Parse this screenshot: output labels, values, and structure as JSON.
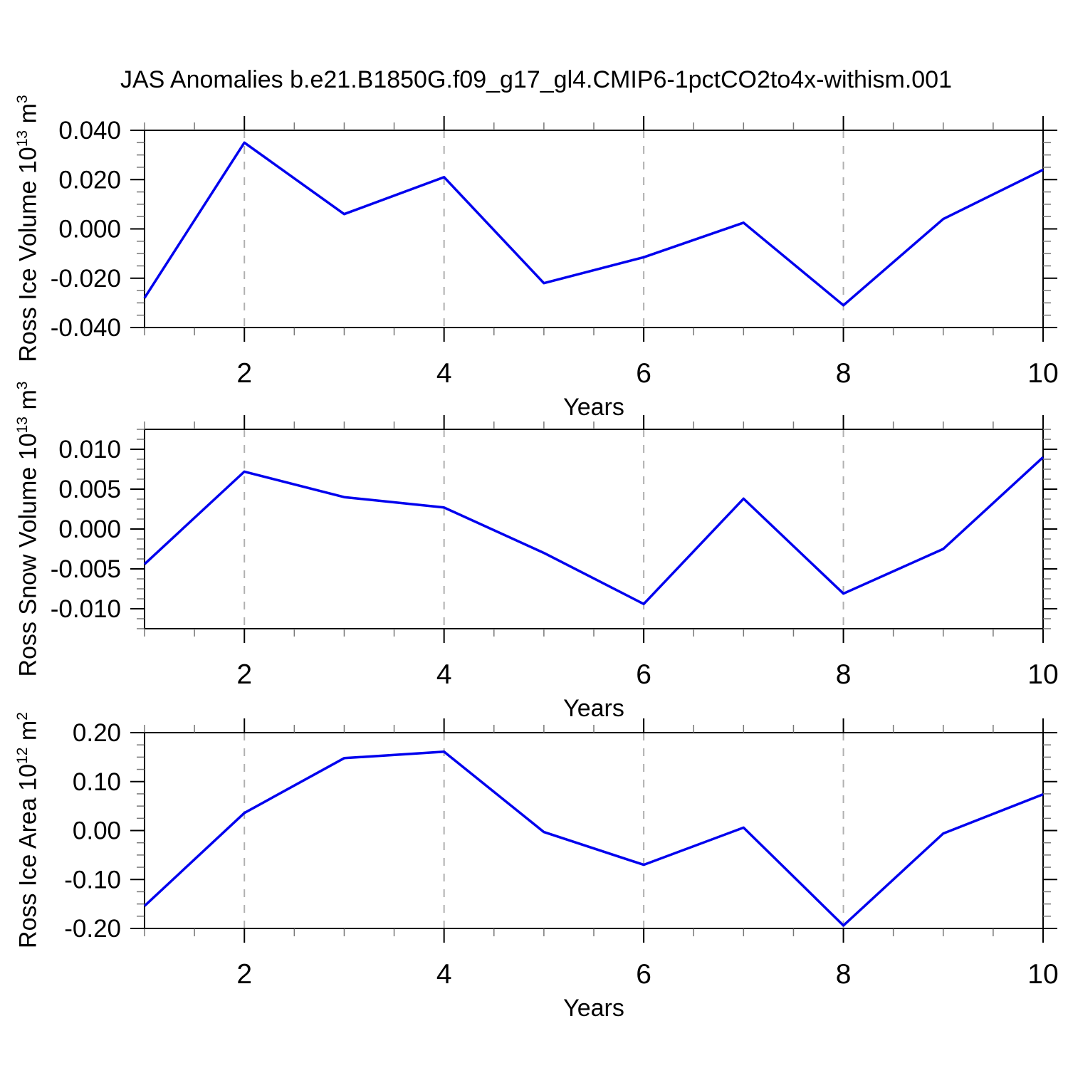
{
  "title": "JAS Anomalies b.e21.B1850G.f09_g17_gl4.CMIP6-1pctCO2to4x-withism.001",
  "chart_data": [
    {
      "type": "line",
      "series_name": "Ross Ice Volume anomaly",
      "x": [
        1,
        2,
        3,
        4,
        5,
        6,
        7,
        8,
        9,
        10
      ],
      "values": [
        -0.028,
        0.035,
        0.006,
        0.021,
        -0.022,
        -0.0115,
        0.0025,
        -0.031,
        0.004,
        0.024
      ],
      "xlabel": "Years",
      "ylabel": {
        "base1": "Ross Ice Volume 10",
        "exp1": "13",
        "base2": " m",
        "exp2": "3"
      },
      "xlim": [
        1,
        10
      ],
      "xticks": [
        2,
        4,
        6,
        8,
        10
      ],
      "xtick_labels": [
        "2",
        "4",
        "6",
        "8",
        "10"
      ],
      "x_minor_step": 0.5,
      "ylim": [
        -0.04,
        0.04
      ],
      "yticks": [
        0.04,
        0.02,
        0.0,
        -0.02,
        -0.04
      ],
      "ytick_labels": [
        "0.040",
        "0.020",
        "0.000",
        "-0.020",
        "-0.040"
      ],
      "y_minor_step": 0.005,
      "grid_x": [
        2,
        4,
        6,
        8
      ],
      "grid_on": true,
      "legend": "none",
      "line_color": "#0000ee",
      "grid_color": "#b0b0b0",
      "frame_color": "#000000"
    },
    {
      "type": "line",
      "series_name": "Ross Snow Volume anomaly",
      "x": [
        1,
        2,
        3,
        4,
        5,
        6,
        7,
        8,
        9,
        10
      ],
      "values": [
        -0.0044,
        0.0072,
        0.004,
        0.0027,
        -0.003,
        -0.0094,
        0.0038,
        -0.0081,
        -0.0025,
        0.009
      ],
      "xlabel": "Years",
      "ylabel": {
        "base1": "Ross Snow Volume 10",
        "exp1": "13",
        "base2": " m",
        "exp2": "3"
      },
      "xlim": [
        1,
        10
      ],
      "xticks": [
        2,
        4,
        6,
        8,
        10
      ],
      "xtick_labels": [
        "2",
        "4",
        "6",
        "8",
        "10"
      ],
      "x_minor_step": 0.5,
      "ylim": [
        -0.0125,
        0.0125
      ],
      "yticks": [
        0.01,
        0.005,
        0.0,
        -0.005,
        -0.01
      ],
      "ytick_labels": [
        "0.010",
        "0.005",
        "0.000",
        "-0.005",
        "-0.010"
      ],
      "y_minor_step": 0.00125,
      "grid_x": [
        2,
        4,
        6,
        8
      ],
      "grid_on": true,
      "legend": "none",
      "line_color": "#0000ee",
      "grid_color": "#b0b0b0",
      "frame_color": "#000000"
    },
    {
      "type": "line",
      "series_name": "Ross Ice Area anomaly",
      "x": [
        1,
        2,
        3,
        4,
        5,
        6,
        7,
        8,
        9,
        10
      ],
      "values": [
        -0.154,
        0.036,
        0.148,
        0.161,
        -0.003,
        -0.07,
        0.006,
        -0.194,
        -0.006,
        0.074
      ],
      "xlabel": "Years",
      "ylabel": {
        "base1": "Ross Ice Area 10",
        "exp1": "12",
        "base2": " m",
        "exp2": "2"
      },
      "xlim": [
        1,
        10
      ],
      "xticks": [
        2,
        4,
        6,
        8,
        10
      ],
      "xtick_labels": [
        "2",
        "4",
        "6",
        "8",
        "10"
      ],
      "x_minor_step": 0.5,
      "ylim": [
        -0.2,
        0.2
      ],
      "yticks": [
        0.2,
        0.1,
        0.0,
        -0.1,
        -0.2
      ],
      "ytick_labels": [
        "0.20",
        "0.10",
        "0.00",
        "-0.10",
        "-0.20"
      ],
      "y_minor_step": 0.025,
      "grid_x": [
        2,
        4,
        6,
        8
      ],
      "grid_on": true,
      "legend": "none",
      "line_color": "#0000ee",
      "grid_color": "#b0b0b0",
      "frame_color": "#000000"
    }
  ]
}
